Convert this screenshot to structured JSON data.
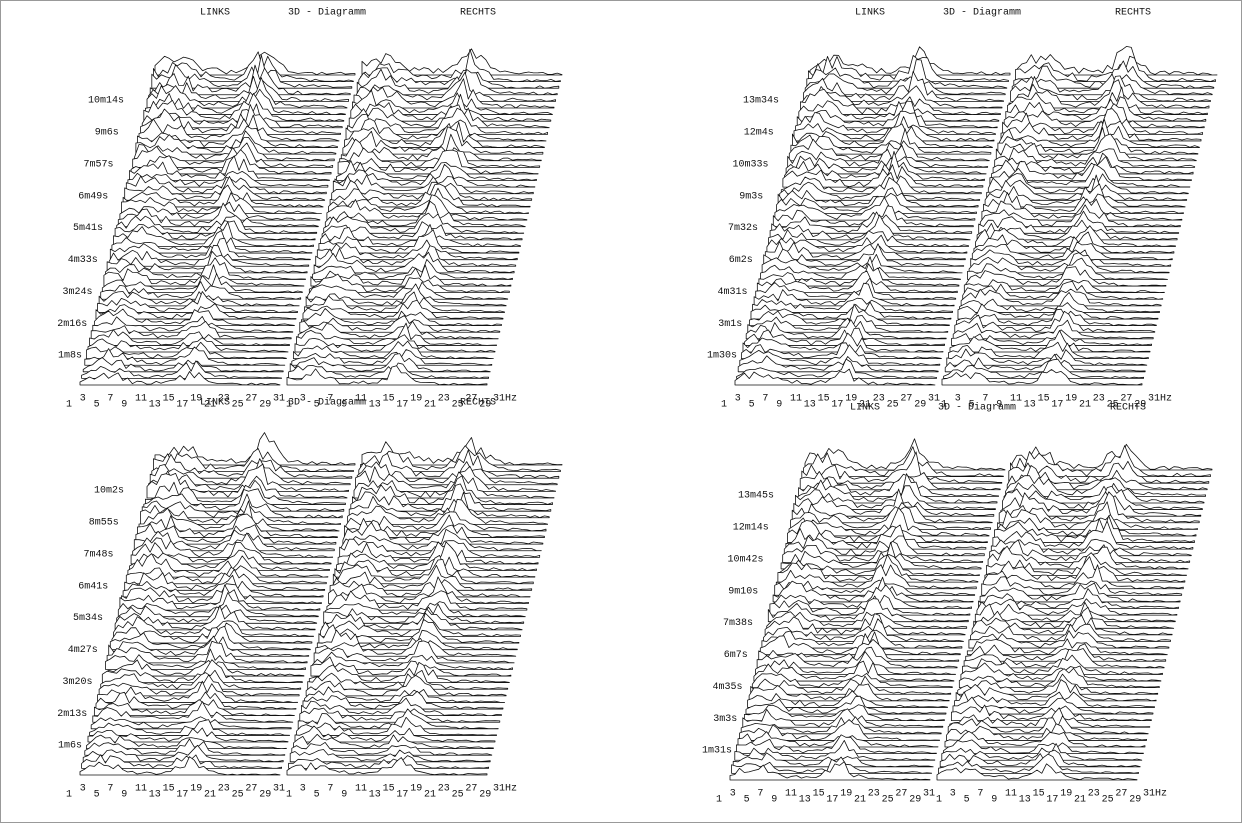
{
  "panels": [
    {
      "left_label": "LINKS",
      "title": "3D - Diagramm",
      "right_label": "RECHTS",
      "time_labels": [
        "10m14s",
        "9m6s",
        "7m57s",
        "6m49s",
        "5m41s",
        "4m33s",
        "3m24s",
        "2m16s",
        "1m8s"
      ],
      "freq_labels_left": [
        "1",
        "3",
        "5",
        "7",
        "9",
        "11",
        "13",
        "15",
        "17",
        "19",
        "21",
        "23",
        "25",
        "27",
        "29",
        "31"
      ],
      "freq_labels_right": [
        "1",
        "3",
        "5",
        "7",
        "9",
        "11",
        "13",
        "15",
        "17",
        "19",
        "21",
        "23",
        "25",
        "27",
        "29",
        "31Hz"
      ]
    },
    {
      "left_label": "LINKS",
      "title": "3D - Diagramm",
      "right_label": "RECHTS",
      "time_labels": [
        "13m34s",
        "12m4s",
        "10m33s",
        "9m3s",
        "7m32s",
        "6m2s",
        "4m31s",
        "3m1s",
        "1m30s"
      ],
      "freq_labels_left": [
        "1",
        "3",
        "5",
        "7",
        "9",
        "11",
        "13",
        "15",
        "17",
        "19",
        "21",
        "23",
        "25",
        "27",
        "29",
        "31"
      ],
      "freq_labels_right": [
        "1",
        "3",
        "5",
        "7",
        "9",
        "11",
        "13",
        "15",
        "17",
        "19",
        "21",
        "23",
        "25",
        "27",
        "29",
        "31Hz"
      ]
    },
    {
      "left_label": "LINKS",
      "title": "3D - Diagramm",
      "right_label": "RECHTS",
      "time_labels": [
        "10m2s",
        "8m55s",
        "7m48s",
        "6m41s",
        "5m34s",
        "4m27s",
        "3m20s",
        "2m13s",
        "1m6s"
      ],
      "freq_labels_left": [
        "1",
        "3",
        "5",
        "7",
        "9",
        "11",
        "13",
        "15",
        "17",
        "19",
        "21",
        "23",
        "25",
        "27",
        "29",
        "31"
      ],
      "freq_labels_right": [
        "1",
        "3",
        "5",
        "7",
        "9",
        "11",
        "13",
        "15",
        "17",
        "19",
        "21",
        "23",
        "25",
        "27",
        "29",
        "31Hz"
      ]
    },
    {
      "left_label": "LINKS",
      "title": "3D - Diagramm",
      "right_label": "RECHTS",
      "time_labels": [
        "13m45s",
        "12m14s",
        "10m42s",
        "9m10s",
        "7m38s",
        "6m7s",
        "4m35s",
        "3m3s",
        "1m31s"
      ],
      "freq_labels_left": [
        "1",
        "3",
        "5",
        "7",
        "9",
        "11",
        "13",
        "15",
        "17",
        "19",
        "21",
        "23",
        "25",
        "27",
        "29",
        "31"
      ],
      "freq_labels_right": [
        "1",
        "3",
        "5",
        "7",
        "9",
        "11",
        "13",
        "15",
        "17",
        "19",
        "21",
        "23",
        "25",
        "27",
        "29",
        "31Hz"
      ]
    }
  ]
}
